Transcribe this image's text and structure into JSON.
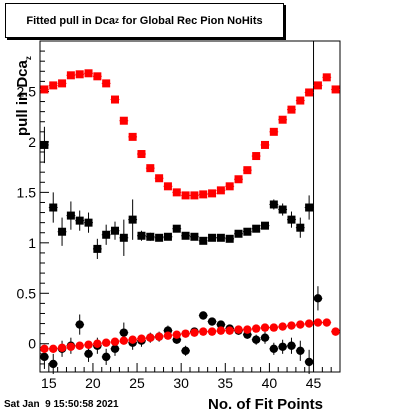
{
  "title_main": "Fitted pull in Dca",
  "title_sub": "z",
  "title_rest": " for Global Rec Pion NoHits",
  "ylabel_main": "pull in Dca",
  "ylabel_sub": "z",
  "xlabel": "No. of Fit Points",
  "timestamp": "Sat Jan  9 15:50:58 2021",
  "colors": {
    "red": "#ff0000",
    "black": "#000000",
    "errbar": "#000000"
  },
  "chart_data": {
    "type": "scatter",
    "xlim": [
      14,
      48
    ],
    "ylim": [
      -0.28,
      3.0
    ],
    "x_ticks": [
      15,
      20,
      25,
      30,
      35,
      40,
      45
    ],
    "y_ticks": [
      0,
      0.5,
      1,
      1.5,
      2,
      2.5
    ],
    "y_tick_labels": [
      "0",
      "0.5",
      "1",
      "1.5",
      "2",
      "2.5"
    ],
    "vertical_line_x": 45,
    "series": [
      {
        "marker": "square",
        "color": "#ff0000",
        "points": [
          [
            14.5,
            2.52,
            0.01
          ],
          [
            15.5,
            2.56,
            0.01
          ],
          [
            16.5,
            2.58,
            0.01
          ],
          [
            17.5,
            2.66,
            0.01
          ],
          [
            18.5,
            2.67,
            0.01
          ],
          [
            19.5,
            2.68,
            0.01
          ],
          [
            20.5,
            2.65,
            0.01
          ],
          [
            21.5,
            2.58,
            0.01
          ],
          [
            22.5,
            2.42,
            0.01
          ],
          [
            23.5,
            2.21,
            0.01
          ],
          [
            24.5,
            2.05,
            0.01
          ],
          [
            25.5,
            1.88,
            0.01
          ],
          [
            26.5,
            1.74,
            0.01
          ],
          [
            27.5,
            1.64,
            0.01
          ],
          [
            28.5,
            1.56,
            0.01
          ],
          [
            29.5,
            1.5,
            0.01
          ],
          [
            30.5,
            1.47,
            0.01
          ],
          [
            31.5,
            1.47,
            0.01
          ],
          [
            32.5,
            1.48,
            0.01
          ],
          [
            33.5,
            1.49,
            0.01
          ],
          [
            34.5,
            1.52,
            0.01
          ],
          [
            35.5,
            1.56,
            0.01
          ],
          [
            36.5,
            1.63,
            0.01
          ],
          [
            37.5,
            1.72,
            0.01
          ],
          [
            38.5,
            1.86,
            0.01
          ],
          [
            39.5,
            1.97,
            0.01
          ],
          [
            40.5,
            2.1,
            0.01
          ],
          [
            41.5,
            2.22,
            0.01
          ],
          [
            42.5,
            2.32,
            0.01
          ],
          [
            43.5,
            2.41,
            0.01
          ],
          [
            44.5,
            2.49,
            0.01
          ],
          [
            45.5,
            2.56,
            0.01
          ],
          [
            46.5,
            2.64,
            0.01
          ],
          [
            47.5,
            2.52,
            0.01
          ]
        ]
      },
      {
        "marker": "square",
        "color": "#000000",
        "points": [
          [
            14.5,
            1.97,
            0.18
          ],
          [
            15.5,
            1.35,
            0.15
          ],
          [
            16.5,
            1.11,
            0.14
          ],
          [
            17.5,
            1.27,
            0.14
          ],
          [
            18.5,
            1.22,
            0.1
          ],
          [
            19.5,
            1.2,
            0.1
          ],
          [
            20.5,
            0.94,
            0.1
          ],
          [
            21.5,
            1.08,
            0.1
          ],
          [
            22.5,
            1.12,
            0.09
          ],
          [
            23.5,
            1.05,
            0.18
          ],
          [
            24.5,
            1.23,
            0.2
          ],
          [
            25.5,
            1.07,
            0.05
          ],
          [
            26.5,
            1.06,
            0.04
          ],
          [
            27.5,
            1.05,
            0.03
          ],
          [
            28.5,
            1.06,
            0.03
          ],
          [
            29.5,
            1.14,
            0.03
          ],
          [
            30.5,
            1.07,
            0.02
          ],
          [
            31.5,
            1.06,
            0.02
          ],
          [
            32.5,
            1.02,
            0.02
          ],
          [
            33.5,
            1.05,
            0.02
          ],
          [
            34.5,
            1.05,
            0.02
          ],
          [
            35.5,
            1.04,
            0.02
          ],
          [
            36.5,
            1.09,
            0.02
          ],
          [
            37.5,
            1.11,
            0.02
          ],
          [
            38.5,
            1.14,
            0.02
          ],
          [
            39.5,
            1.17,
            0.03
          ],
          [
            40.5,
            1.38,
            0.05
          ],
          [
            41.5,
            1.33,
            0.06
          ],
          [
            42.5,
            1.23,
            0.08
          ],
          [
            43.5,
            1.15,
            0.1
          ],
          [
            44.5,
            1.35,
            0.12
          ]
        ]
      },
      {
        "marker": "circle",
        "color": "#000000",
        "points": [
          [
            14.5,
            -0.13,
            0.12
          ],
          [
            15.5,
            -0.2,
            0.1
          ],
          [
            16.5,
            -0.05,
            0.08
          ],
          [
            17.5,
            -0.02,
            0.08
          ],
          [
            18.5,
            0.19,
            0.1
          ],
          [
            19.5,
            -0.1,
            0.08
          ],
          [
            20.5,
            -0.02,
            0.08
          ],
          [
            21.5,
            -0.13,
            0.08
          ],
          [
            22.5,
            -0.05,
            0.07
          ],
          [
            23.5,
            0.11,
            0.1
          ],
          [
            24.5,
            0.01,
            0.07
          ],
          [
            25.5,
            0.03,
            0.06
          ],
          [
            26.5,
            0.06,
            0.05
          ],
          [
            27.5,
            0.07,
            0.05
          ],
          [
            28.5,
            0.13,
            0.05
          ],
          [
            29.5,
            0.04,
            0.04
          ],
          [
            30.5,
            -0.07,
            0.05
          ],
          [
            31.5,
            0.12,
            0.04
          ],
          [
            32.5,
            0.28,
            0.04
          ],
          [
            33.5,
            0.22,
            0.04
          ],
          [
            34.5,
            0.19,
            0.04
          ],
          [
            35.5,
            0.15,
            0.04
          ],
          [
            36.5,
            0.13,
            0.04
          ],
          [
            37.5,
            0.09,
            0.04
          ],
          [
            38.5,
            0.04,
            0.05
          ],
          [
            39.5,
            0.06,
            0.06
          ],
          [
            40.5,
            -0.05,
            0.06
          ],
          [
            41.5,
            -0.03,
            0.07
          ],
          [
            42.5,
            -0.02,
            0.08
          ],
          [
            43.5,
            -0.07,
            0.1
          ],
          [
            44.5,
            -0.18,
            0.12
          ],
          [
            45.5,
            0.45,
            0.12
          ]
        ]
      },
      {
        "marker": "circle",
        "color": "#ff0000",
        "points": [
          [
            14.5,
            -0.05,
            0.01
          ],
          [
            15.5,
            -0.05,
            0.01
          ],
          [
            16.5,
            -0.04,
            0.01
          ],
          [
            17.5,
            -0.03,
            0.01
          ],
          [
            18.5,
            -0.02,
            0.01
          ],
          [
            19.5,
            -0.01,
            0.01
          ],
          [
            20.5,
            0.0,
            0.01
          ],
          [
            21.5,
            0.01,
            0.01
          ],
          [
            22.5,
            0.02,
            0.01
          ],
          [
            23.5,
            0.03,
            0.01
          ],
          [
            24.5,
            0.04,
            0.01
          ],
          [
            25.5,
            0.05,
            0.01
          ],
          [
            26.5,
            0.06,
            0.01
          ],
          [
            27.5,
            0.07,
            0.01
          ],
          [
            28.5,
            0.08,
            0.01
          ],
          [
            29.5,
            0.09,
            0.01
          ],
          [
            30.5,
            0.1,
            0.01
          ],
          [
            31.5,
            0.11,
            0.01
          ],
          [
            32.5,
            0.12,
            0.01
          ],
          [
            33.5,
            0.12,
            0.01
          ],
          [
            34.5,
            0.13,
            0.01
          ],
          [
            35.5,
            0.13,
            0.01
          ],
          [
            36.5,
            0.14,
            0.01
          ],
          [
            37.5,
            0.14,
            0.01
          ],
          [
            38.5,
            0.15,
            0.01
          ],
          [
            39.5,
            0.16,
            0.01
          ],
          [
            40.5,
            0.16,
            0.01
          ],
          [
            41.5,
            0.17,
            0.01
          ],
          [
            42.5,
            0.18,
            0.01
          ],
          [
            43.5,
            0.19,
            0.01
          ],
          [
            44.5,
            0.2,
            0.01
          ],
          [
            45.5,
            0.21,
            0.01
          ],
          [
            46.5,
            0.21,
            0.01
          ],
          [
            47.5,
            0.12,
            0.01
          ]
        ]
      }
    ]
  }
}
